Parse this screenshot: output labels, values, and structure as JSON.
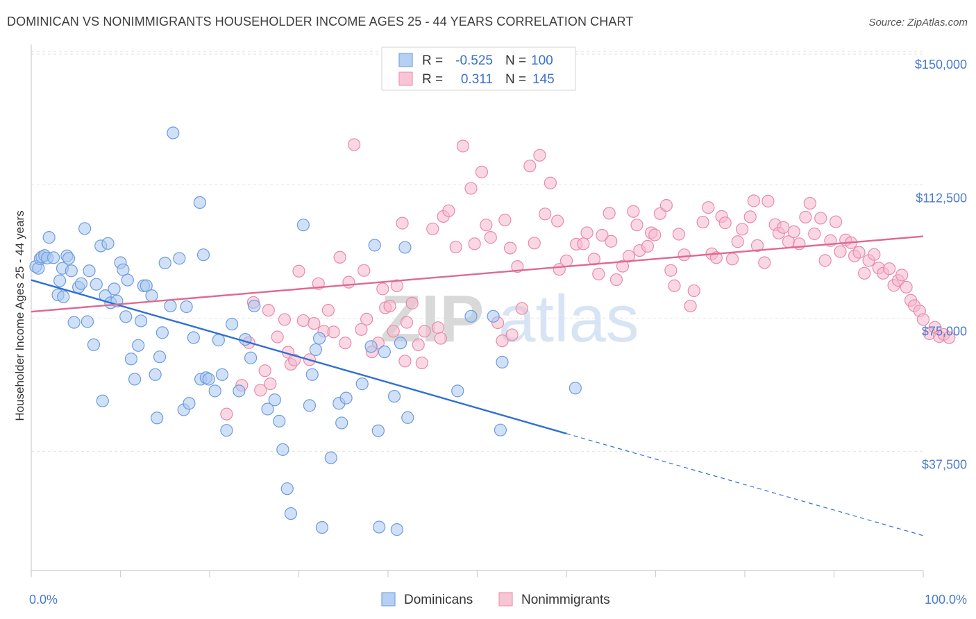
{
  "title": "DOMINICAN VS NONIMMIGRANTS HOUSEHOLDER INCOME AGES 25 - 44 YEARS CORRELATION CHART",
  "source": "Source: ZipAtlas.com",
  "watermark": {
    "zip": "ZIP",
    "atlas": "atlas"
  },
  "colors": {
    "blue_fill": "#a9c8f0",
    "blue_stroke": "#6d9be0",
    "blue_line": "#2f6fd6",
    "pink_fill": "#f6b8cc",
    "pink_stroke": "#e98aa9",
    "pink_line": "#e0698f",
    "tick_text": "#4a7bd0",
    "grid": "#e2e2e2"
  },
  "legend_top": {
    "rows": [
      {
        "r_label": "R =",
        "r_value": "-0.525",
        "n_label": "N =",
        "n_value": "100",
        "color": "blue"
      },
      {
        "r_label": "R =",
        "r_value": "0.311",
        "n_label": "N =",
        "n_value": "145",
        "color": "pink"
      }
    ]
  },
  "legend_bottom": [
    "Dominicans",
    "Nonimmigrants"
  ],
  "chart_data": {
    "type": "scatter",
    "xlabel": "",
    "ylabel": "Householder Income Ages 25 - 44 years",
    "x_tick_labels": [
      "0.0%",
      "100.0%"
    ],
    "y_tick_labels": [
      "$37,500",
      "$75,000",
      "$112,500",
      "$150,000"
    ],
    "y_tick_values": [
      37500,
      75000,
      112500,
      150000
    ],
    "xlim": [
      0,
      100
    ],
    "ylim": [
      4000,
      152000
    ],
    "grid": true,
    "series": [
      {
        "name": "Dominicans",
        "color": "blue",
        "trend": {
          "x0": 0,
          "y0": 85700,
          "x1": 60,
          "y1": 42500,
          "dash_to_x": 100,
          "dash_to_y": 13800
        },
        "points": [
          [
            0.5,
            89500
          ],
          [
            0.8,
            89000
          ],
          [
            1.0,
            91700
          ],
          [
            1.2,
            92200
          ],
          [
            1.5,
            92600
          ],
          [
            1.8,
            91900
          ],
          [
            2.0,
            97700
          ],
          [
            2.5,
            92000
          ],
          [
            3.0,
            81500
          ],
          [
            3.2,
            85500
          ],
          [
            3.5,
            89000
          ],
          [
            3.6,
            81000
          ],
          [
            4.0,
            92500
          ],
          [
            4.2,
            91800
          ],
          [
            4.5,
            88300
          ],
          [
            4.8,
            73800
          ],
          [
            5.3,
            83700
          ],
          [
            5.6,
            84700
          ],
          [
            6.0,
            100200
          ],
          [
            6.3,
            74000
          ],
          [
            6.5,
            88300
          ],
          [
            7.0,
            67500
          ],
          [
            7.3,
            84500
          ],
          [
            7.8,
            95300
          ],
          [
            8.0,
            51700
          ],
          [
            8.3,
            81300
          ],
          [
            8.6,
            96000
          ],
          [
            8.9,
            79300
          ],
          [
            9.3,
            83200
          ],
          [
            9.6,
            79800
          ],
          [
            10.0,
            90600
          ],
          [
            10.3,
            88600
          ],
          [
            10.6,
            75400
          ],
          [
            10.8,
            85700
          ],
          [
            11.2,
            63500
          ],
          [
            11.6,
            57800
          ],
          [
            12.0,
            67300
          ],
          [
            12.3,
            74200
          ],
          [
            12.6,
            84100
          ],
          [
            12.9,
            84100
          ],
          [
            13.5,
            81300
          ],
          [
            13.9,
            59100
          ],
          [
            14.1,
            46900
          ],
          [
            14.4,
            64100
          ],
          [
            14.7,
            70900
          ],
          [
            15.0,
            90500
          ],
          [
            15.6,
            78400
          ],
          [
            15.9,
            127100
          ],
          [
            16.6,
            91800
          ],
          [
            17.1,
            49200
          ],
          [
            17.4,
            78200
          ],
          [
            17.7,
            51000
          ],
          [
            18.2,
            69500
          ],
          [
            18.9,
            107500
          ],
          [
            19.0,
            57800
          ],
          [
            19.3,
            92800
          ],
          [
            19.6,
            58200
          ],
          [
            19.9,
            57800
          ],
          [
            20.6,
            54500
          ],
          [
            21.0,
            68800
          ],
          [
            21.4,
            59100
          ],
          [
            21.9,
            43400
          ],
          [
            22.5,
            73300
          ],
          [
            23.3,
            54500
          ],
          [
            24.0,
            69000
          ],
          [
            24.6,
            63800
          ],
          [
            25.0,
            78400
          ],
          [
            26.5,
            49400
          ],
          [
            27.3,
            52000
          ],
          [
            27.8,
            46000
          ],
          [
            28.2,
            38000
          ],
          [
            28.7,
            27000
          ],
          [
            29.1,
            20000
          ],
          [
            30.5,
            101200
          ],
          [
            31.2,
            50400
          ],
          [
            31.5,
            59100
          ],
          [
            31.9,
            66100
          ],
          [
            32.3,
            69300
          ],
          [
            32.6,
            16100
          ],
          [
            33.6,
            35700
          ],
          [
            34.5,
            51000
          ],
          [
            34.8,
            45500
          ],
          [
            35.3,
            52500
          ],
          [
            37.1,
            56500
          ],
          [
            38.1,
            67000
          ],
          [
            38.5,
            95500
          ],
          [
            38.9,
            43300
          ],
          [
            39.0,
            16200
          ],
          [
            39.6,
            65500
          ],
          [
            40.7,
            53000
          ],
          [
            41.4,
            68000
          ],
          [
            41.9,
            94900
          ],
          [
            42.2,
            47000
          ],
          [
            47.8,
            54500
          ],
          [
            49.3,
            75500
          ],
          [
            51.8,
            75500
          ],
          [
            52.6,
            43500
          ],
          [
            52.8,
            62600
          ],
          [
            61.0,
            55300
          ],
          [
            41.0,
            15500
          ]
        ]
      },
      {
        "name": "Nonimmigrants",
        "color": "pink",
        "trend": {
          "x0": 0,
          "y0": 76800,
          "x1": 100,
          "y1": 98000
        },
        "points": [
          [
            21.9,
            48000
          ],
          [
            23.6,
            56100
          ],
          [
            24.4,
            68100
          ],
          [
            24.9,
            79400
          ],
          [
            25.7,
            54700
          ],
          [
            26.2,
            60200
          ],
          [
            26.6,
            77200
          ],
          [
            26.8,
            56500
          ],
          [
            27.6,
            69700
          ],
          [
            28.4,
            74600
          ],
          [
            28.8,
            65400
          ],
          [
            29.1,
            62000
          ],
          [
            29.5,
            63200
          ],
          [
            30.0,
            88200
          ],
          [
            30.5,
            74300
          ],
          [
            31.2,
            63300
          ],
          [
            31.7,
            73500
          ],
          [
            32.2,
            84700
          ],
          [
            32.8,
            71300
          ],
          [
            33.3,
            77200
          ],
          [
            33.9,
            71100
          ],
          [
            34.6,
            92100
          ],
          [
            35.2,
            68000
          ],
          [
            35.6,
            85100
          ],
          [
            36.2,
            123800
          ],
          [
            37.0,
            71800
          ],
          [
            37.3,
            88400
          ],
          [
            37.6,
            74700
          ],
          [
            38.2,
            65500
          ],
          [
            38.9,
            68000
          ],
          [
            39.4,
            83200
          ],
          [
            39.7,
            77900
          ],
          [
            40.2,
            78400
          ],
          [
            40.6,
            71300
          ],
          [
            41.0,
            84100
          ],
          [
            41.6,
            101700
          ],
          [
            41.9,
            62900
          ],
          [
            42.1,
            73800
          ],
          [
            42.7,
            79200
          ],
          [
            43.4,
            67500
          ],
          [
            43.8,
            62400
          ],
          [
            44.1,
            71300
          ],
          [
            45.0,
            100100
          ],
          [
            45.6,
            72300
          ],
          [
            45.9,
            69300
          ],
          [
            46.2,
            103600
          ],
          [
            46.8,
            105200
          ],
          [
            47.6,
            95000
          ],
          [
            48.4,
            123400
          ],
          [
            49.3,
            111500
          ],
          [
            49.7,
            95900
          ],
          [
            50.5,
            116100
          ],
          [
            51.0,
            101200
          ],
          [
            51.5,
            97700
          ],
          [
            52.3,
            73700
          ],
          [
            52.8,
            68600
          ],
          [
            53.1,
            102600
          ],
          [
            53.7,
            94700
          ],
          [
            53.9,
            70300
          ],
          [
            54.5,
            89500
          ],
          [
            55.0,
            77700
          ],
          [
            55.9,
            117800
          ],
          [
            56.4,
            96100
          ],
          [
            57.0,
            120800
          ],
          [
            57.6,
            104300
          ],
          [
            58.2,
            113000
          ],
          [
            59.0,
            102300
          ],
          [
            59.2,
            88700
          ],
          [
            60.0,
            91100
          ],
          [
            61.1,
            95800
          ],
          [
            61.9,
            95900
          ],
          [
            62.3,
            99000
          ],
          [
            63.1,
            91600
          ],
          [
            63.6,
            87400
          ],
          [
            64.0,
            98300
          ],
          [
            64.8,
            104500
          ],
          [
            65.0,
            96600
          ],
          [
            65.6,
            85800
          ],
          [
            66.3,
            89600
          ],
          [
            67.0,
            92400
          ],
          [
            67.5,
            105000
          ],
          [
            67.9,
            101200
          ],
          [
            68.2,
            94000
          ],
          [
            69.1,
            95200
          ],
          [
            69.5,
            99000
          ],
          [
            69.9,
            98400
          ],
          [
            70.5,
            104400
          ],
          [
            71.2,
            106700
          ],
          [
            71.7,
            88400
          ],
          [
            72.1,
            84100
          ],
          [
            72.6,
            98600
          ],
          [
            73.2,
            92800
          ],
          [
            73.9,
            78400
          ],
          [
            74.3,
            82700
          ],
          [
            75.3,
            102000
          ],
          [
            75.9,
            106100
          ],
          [
            76.3,
            93100
          ],
          [
            76.8,
            92000
          ],
          [
            77.4,
            103600
          ],
          [
            77.8,
            101800
          ],
          [
            78.6,
            91600
          ],
          [
            79.2,
            96500
          ],
          [
            79.7,
            100000
          ],
          [
            80.6,
            103500
          ],
          [
            81.0,
            108000
          ],
          [
            81.4,
            95400
          ],
          [
            82.2,
            90600
          ],
          [
            82.6,
            107900
          ],
          [
            83.4,
            101300
          ],
          [
            83.8,
            98900
          ],
          [
            84.3,
            100500
          ],
          [
            84.9,
            96500
          ],
          [
            85.5,
            99300
          ],
          [
            86.1,
            95900
          ],
          [
            86.8,
            103400
          ],
          [
            87.3,
            107300
          ],
          [
            87.8,
            98700
          ],
          [
            88.5,
            103100
          ],
          [
            89.0,
            91200
          ],
          [
            89.6,
            96800
          ],
          [
            90.2,
            102100
          ],
          [
            90.7,
            93700
          ],
          [
            91.3,
            97000
          ],
          [
            91.9,
            96200
          ],
          [
            92.3,
            92500
          ],
          [
            92.8,
            93500
          ],
          [
            93.4,
            87600
          ],
          [
            93.9,
            91200
          ],
          [
            94.5,
            92900
          ],
          [
            95.0,
            89100
          ],
          [
            95.5,
            87600
          ],
          [
            96.2,
            88900
          ],
          [
            96.7,
            84200
          ],
          [
            97.2,
            85600
          ],
          [
            97.6,
            87100
          ],
          [
            98.1,
            83700
          ],
          [
            98.6,
            80000
          ],
          [
            99.0,
            78500
          ],
          [
            99.6,
            77000
          ],
          [
            100.0,
            74600
          ],
          [
            100.7,
            70600
          ],
          [
            101.3,
            72400
          ],
          [
            101.8,
            69800
          ],
          [
            102.3,
            70400
          ],
          [
            102.9,
            69500
          ]
        ]
      }
    ]
  }
}
